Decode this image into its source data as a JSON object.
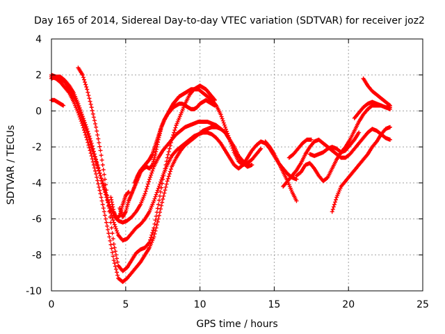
{
  "chart_data": {
    "type": "scatter",
    "title": "Day 165 of 2014, Sidereal Day-to-day VTEC variation (SDTVAR) for receiver joz2",
    "xlabel": "GPS time / hours",
    "ylabel": "SDTVAR / TECUs",
    "xlim": [
      0,
      25
    ],
    "ylim": [
      -10,
      4
    ],
    "x_ticks": [
      0,
      5,
      10,
      15,
      20,
      25
    ],
    "y_ticks": [
      -10,
      -8,
      -6,
      -4,
      -2,
      0,
      2,
      4
    ],
    "x_tick_labels": [
      "0",
      "5",
      "10",
      "15",
      "20",
      "25"
    ],
    "y_tick_labels": [
      "-10",
      "-8",
      "-6",
      "-4",
      "-2",
      "0",
      "2",
      "4"
    ],
    "grid": true,
    "marker": "plus",
    "color": "#ff0000",
    "series": [
      {
        "x": [
          0.0,
          0.3,
          0.6,
          0.9,
          1.2,
          1.5,
          1.8,
          2.1,
          2.4,
          2.7,
          3.0,
          3.3,
          3.6,
          3.9,
          4.2,
          4.5,
          4.8,
          5.1,
          5.4,
          5.7,
          6.0,
          6.3,
          6.6,
          6.9,
          7.2,
          7.5,
          7.8,
          8.1,
          8.4,
          8.7,
          9.0,
          9.3,
          9.6,
          9.9,
          10.2,
          10.5,
          10.8,
          11.1,
          11.4,
          11.7,
          12.0,
          12.3,
          12.6,
          12.9,
          13.2,
          13.5
        ],
        "y": [
          2.0,
          1.9,
          1.8,
          1.6,
          1.2,
          0.8,
          0.2,
          -0.5,
          -1.2,
          -2.0,
          -2.8,
          -3.6,
          -4.4,
          -5.2,
          -5.8,
          -6.1,
          -6.2,
          -6.1,
          -5.9,
          -5.6,
          -5.2,
          -4.6,
          -3.8,
          -3.1,
          -2.6,
          -2.2,
          -1.9,
          -1.6,
          -1.3,
          -1.1,
          -0.9,
          -0.8,
          -0.7,
          -0.6,
          -0.6,
          -0.6,
          -0.7,
          -0.8,
          -1.0,
          -1.2,
          -1.6,
          -2.0,
          -2.5,
          -2.9,
          -3.1,
          -3.0
        ]
      },
      {
        "x": [
          0.0,
          0.3,
          0.6,
          0.9,
          1.2,
          1.5,
          1.8,
          2.1,
          2.4,
          2.7,
          3.0,
          3.3,
          3.6,
          3.9,
          4.2,
          4.5,
          4.8,
          5.1,
          5.4,
          5.7,
          6.0,
          6.3,
          6.6,
          6.9,
          7.2,
          7.5,
          7.8,
          8.1,
          8.4,
          8.7,
          9.0,
          9.3,
          9.6,
          9.9,
          10.2,
          10.5,
          10.8,
          11.1,
          11.4,
          11.7,
          12.0,
          12.3,
          12.6,
          12.9,
          13.2,
          13.5,
          13.8,
          14.1,
          14.4,
          14.7,
          15.0,
          15.3,
          15.6,
          15.9,
          16.2,
          16.5
        ],
        "y": [
          1.8,
          1.9,
          1.9,
          1.7,
          1.4,
          1.0,
          0.4,
          -0.3,
          -1.0,
          -1.8,
          -2.7,
          -3.6,
          -4.5,
          -5.4,
          -6.2,
          -6.9,
          -7.2,
          -7.1,
          -6.8,
          -6.5,
          -6.3,
          -6.0,
          -5.6,
          -5.0,
          -4.3,
          -3.6,
          -3.0,
          -2.5,
          -2.2,
          -2.0,
          -1.8,
          -1.6,
          -1.4,
          -1.3,
          -1.2,
          -1.2,
          -1.3,
          -1.5,
          -1.8,
          -2.2,
          -2.6,
          -3.0,
          -3.2,
          -3.0,
          -2.6,
          -2.2,
          -1.9,
          -1.7,
          -1.8,
          -2.1,
          -2.5,
          -2.9,
          -3.2,
          -3.5,
          -3.7,
          -3.8
        ]
      },
      {
        "x": [
          1.8,
          2.1,
          2.4,
          2.7,
          3.0,
          3.3,
          3.6,
          3.9,
          4.2,
          4.5,
          4.8,
          5.1,
          5.4,
          5.7,
          6.0,
          6.3,
          6.6,
          6.9,
          7.2,
          7.5,
          7.8,
          8.1,
          8.4,
          8.7,
          9.0,
          9.3,
          9.6,
          9.9,
          10.2,
          10.5,
          10.8,
          11.1,
          11.4,
          11.7,
          12.0,
          12.3,
          12.6,
          12.9,
          13.2,
          13.5
        ],
        "y": [
          2.4,
          2.0,
          1.2,
          0.2,
          -0.9,
          -2.2,
          -3.8,
          -5.6,
          -7.4,
          -8.6,
          -8.9,
          -8.7,
          -8.3,
          -7.9,
          -7.7,
          -7.6,
          -7.3,
          -6.5,
          -5.2,
          -3.8,
          -2.6,
          -1.6,
          -0.8,
          -0.2,
          0.4,
          0.9,
          1.2,
          1.2,
          1.0,
          0.8,
          0.6,
          0.3,
          -0.2,
          -0.9,
          -1.6,
          -2.3,
          -2.8,
          -3.0,
          -2.9,
          -2.7
        ]
      },
      {
        "x": [
          0.0,
          0.3,
          0.6,
          0.9,
          1.2,
          1.5,
          1.8,
          2.1,
          2.4,
          2.7,
          3.0,
          3.3,
          3.6,
          3.9,
          4.2,
          4.5,
          4.8,
          5.1,
          5.4,
          5.7,
          6.0,
          6.3,
          6.6,
          6.9,
          7.2,
          7.5,
          7.8,
          8.1,
          8.4,
          8.7,
          9.0,
          9.3,
          9.6,
          9.9,
          10.2,
          10.5,
          10.8,
          11.1,
          11.4,
          11.7,
          12.0,
          12.3,
          12.6,
          12.9,
          13.2,
          13.5,
          13.8,
          14.1
        ],
        "y": [
          1.9,
          1.8,
          1.6,
          1.3,
          1.0,
          0.5,
          -0.1,
          -0.8,
          -1.6,
          -2.5,
          -3.5,
          -4.6,
          -5.8,
          -7.0,
          -8.3,
          -9.3,
          -9.5,
          -9.3,
          -9.0,
          -8.7,
          -8.4,
          -8.0,
          -7.6,
          -7.0,
          -6.0,
          -4.9,
          -3.9,
          -3.1,
          -2.6,
          -2.2,
          -1.9,
          -1.7,
          -1.5,
          -1.3,
          -1.1,
          -1.0,
          -0.9,
          -0.9,
          -1.0,
          -1.2,
          -1.6,
          -2.0,
          -2.5,
          -2.8,
          -2.9,
          -2.7,
          -2.4,
          -2.1
        ]
      },
      {
        "x": [
          0.0,
          0.2,
          0.4,
          0.6,
          0.8
        ],
        "y": [
          0.6,
          0.6,
          0.5,
          0.4,
          0.3
        ]
      },
      {
        "x": [
          4.6,
          4.8,
          5.0,
          5.2,
          5.4,
          5.6,
          5.8,
          6.0,
          6.2,
          6.4,
          6.6,
          6.8,
          7.0,
          7.2,
          7.4,
          7.6,
          7.8,
          8.0,
          8.2,
          8.4,
          8.6,
          8.8,
          9.0,
          9.2,
          9.4,
          9.6,
          9.8,
          10.0,
          10.2,
          10.4,
          10.6,
          10.8,
          11.0
        ],
        "y": [
          -5.4,
          -5.9,
          -5.6,
          -5.0,
          -4.6,
          -4.2,
          -3.8,
          -3.4,
          -3.2,
          -3.1,
          -3.2,
          -3.0,
          -2.4,
          -1.6,
          -0.9,
          -0.5,
          -0.2,
          0.1,
          0.4,
          0.6,
          0.8,
          0.9,
          1.0,
          1.1,
          1.2,
          1.2,
          1.3,
          1.4,
          1.3,
          1.2,
          1.0,
          0.8,
          0.6
        ]
      },
      {
        "x": [
          5.6,
          5.8,
          6.0,
          6.2,
          6.4,
          6.6,
          6.8,
          7.0,
          7.2,
          7.4,
          7.6,
          7.8,
          8.0,
          8.2,
          8.4,
          8.6,
          8.8,
          9.0,
          9.2,
          9.4,
          9.6,
          9.8,
          10.0,
          10.2,
          10.4,
          10.6,
          10.8,
          11.0
        ],
        "y": [
          -4.0,
          -3.6,
          -3.3,
          -3.1,
          -2.9,
          -2.7,
          -2.4,
          -1.9,
          -1.4,
          -0.9,
          -0.5,
          -0.2,
          0.0,
          0.2,
          0.3,
          0.4,
          0.4,
          0.3,
          0.2,
          0.1,
          0.1,
          0.2,
          0.4,
          0.5,
          0.6,
          0.5,
          0.4,
          0.3
        ]
      },
      {
        "x": [
          4.0,
          4.2,
          4.4,
          4.6,
          4.8,
          5.0,
          5.2
        ],
        "y": [
          -4.8,
          -5.6,
          -6.0,
          -5.8,
          -5.2,
          -4.7,
          -4.5
        ]
      },
      {
        "x": [
          14.4,
          14.7,
          15.0,
          15.3,
          15.6,
          15.9,
          16.2,
          16.5
        ],
        "y": [
          -1.7,
          -2.0,
          -2.4,
          -2.9,
          -3.4,
          -3.9,
          -4.5,
          -5.0
        ]
      },
      {
        "x": [
          15.6,
          15.9,
          16.2,
          16.5,
          16.8,
          17.1,
          17.4,
          17.7,
          18.0,
          18.3,
          18.6,
          18.9,
          19.2,
          19.5,
          19.8,
          20.1,
          20.4,
          20.7,
          21.0,
          21.3,
          21.6,
          21.9,
          22.2,
          22.5,
          22.8
        ],
        "y": [
          -4.2,
          -3.9,
          -3.6,
          -3.3,
          -2.9,
          -2.4,
          -2.0,
          -1.7,
          -1.6,
          -1.8,
          -2.0,
          -2.2,
          -2.4,
          -2.6,
          -2.6,
          -2.4,
          -2.1,
          -1.8,
          -1.5,
          -1.2,
          -1.0,
          -1.1,
          -1.3,
          -1.5,
          -1.6
        ]
      },
      {
        "x": [
          16.5,
          16.8,
          17.1,
          17.4,
          17.7,
          18.0,
          18.3,
          18.6,
          18.9,
          19.2,
          19.5,
          19.8,
          20.1,
          20.4,
          20.7,
          21.0,
          21.3,
          21.6,
          21.9,
          22.2,
          22.5,
          22.8
        ],
        "y": [
          -3.6,
          -3.4,
          -3.0,
          -2.9,
          -3.2,
          -3.6,
          -3.9,
          -3.7,
          -3.2,
          -2.7,
          -2.3,
          -2.0,
          -1.6,
          -1.1,
          -0.6,
          -0.2,
          0.1,
          0.3,
          0.3,
          0.3,
          0.2,
          0.2
        ]
      },
      {
        "x": [
          18.9,
          19.2,
          19.5,
          19.8,
          20.1,
          20.4,
          20.7,
          21.0,
          21.3,
          21.6,
          21.9,
          22.2,
          22.5,
          22.8
        ],
        "y": [
          -5.6,
          -4.8,
          -4.2,
          -3.9,
          -3.6,
          -3.3,
          -3.0,
          -2.7,
          -2.4,
          -2.0,
          -1.7,
          -1.3,
          -1.0,
          -0.9
        ]
      },
      {
        "x": [
          17.4,
          17.7,
          18.0,
          18.3,
          18.6,
          18.9,
          19.2,
          19.5,
          19.8,
          20.1,
          20.4,
          20.7
        ],
        "y": [
          -2.4,
          -2.5,
          -2.4,
          -2.3,
          -2.1,
          -2.0,
          -2.1,
          -2.3,
          -2.2,
          -1.9,
          -1.6,
          -1.2
        ]
      },
      {
        "x": [
          20.4,
          20.7,
          21.0,
          21.3,
          21.6,
          21.9,
          22.2,
          22.5,
          22.8
        ],
        "y": [
          -0.4,
          -0.1,
          0.2,
          0.4,
          0.5,
          0.4,
          0.3,
          0.2,
          0.1
        ]
      },
      {
        "x": [
          21.0,
          21.3,
          21.6,
          21.9,
          22.2,
          22.5,
          22.8
        ],
        "y": [
          1.8,
          1.4,
          1.1,
          0.9,
          0.7,
          0.5,
          0.3
        ]
      },
      {
        "x": [
          16.0,
          16.3,
          16.6,
          16.9,
          17.2,
          17.5
        ],
        "y": [
          -2.6,
          -2.4,
          -2.1,
          -1.8,
          -1.6,
          -1.6
        ]
      }
    ]
  }
}
